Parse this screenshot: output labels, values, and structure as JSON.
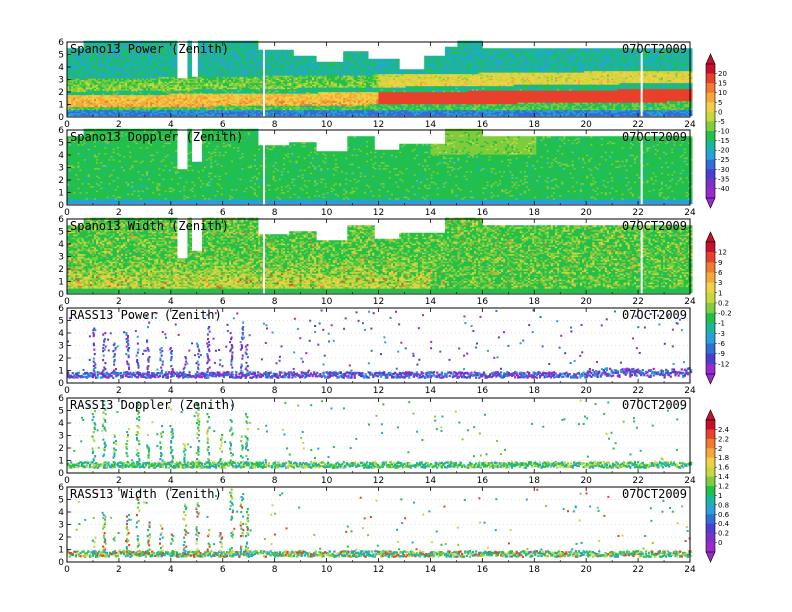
{
  "chart_data": [
    {
      "type": "heatmap",
      "title": "Spano13 Power (Zenith)",
      "date": "07OCT2009",
      "xlim": [
        0,
        24
      ],
      "ylim": [
        0,
        6
      ],
      "x_ticks": [
        "0",
        "2",
        "4",
        "6",
        "8",
        "10",
        "12",
        "14",
        "16",
        "18",
        "20",
        "22",
        "24"
      ],
      "y_ticks": [
        "0",
        "1",
        "2",
        "3",
        "4",
        "5",
        "6"
      ],
      "colorscale_group": 1,
      "gaps": [
        [
          4.2,
          4.6,
          3.0
        ],
        [
          4.8,
          5.0,
          3.2
        ],
        [
          7.3,
          8.7,
          5.3
        ],
        [
          8.7,
          9.6,
          4.8
        ],
        [
          9.6,
          10.6,
          4.4
        ],
        [
          10.6,
          11.6,
          5.2
        ],
        [
          11.6,
          12.8,
          4.6
        ],
        [
          12.8,
          13.7,
          3.8
        ],
        [
          13.7,
          14.5,
          4.9
        ],
        [
          14.5,
          15.0,
          5.6
        ],
        [
          16.0,
          24.0,
          5.5
        ]
      ],
      "bands": [
        [
          1.2,
          1.7,
          2.7
        ],
        [
          2.5,
          3.2,
          1.2
        ]
      ]
    },
    {
      "type": "heatmap",
      "title": "Spano13 Doppler (Zenith)",
      "date": "07OCT2009",
      "xlim": [
        0,
        24
      ],
      "ylim": [
        0,
        6
      ],
      "x_ticks": [
        "0",
        "2",
        "4",
        "6",
        "8",
        "10",
        "12",
        "14",
        "16",
        "18",
        "20",
        "22",
        "24"
      ],
      "y_ticks": [
        "0",
        "1",
        "2",
        "3",
        "4",
        "5",
        "6"
      ],
      "colorscale_group": 1,
      "gaps": [
        [
          4.2,
          4.6,
          2.8
        ],
        [
          4.8,
          5.2,
          3.4
        ],
        [
          7.3,
          8.5,
          4.7
        ],
        [
          8.5,
          9.6,
          5.0
        ],
        [
          9.6,
          10.8,
          4.2
        ],
        [
          10.8,
          11.8,
          5.5
        ],
        [
          11.8,
          12.8,
          4.4
        ],
        [
          12.8,
          14.5,
          4.9
        ],
        [
          16.0,
          24.0,
          5.5
        ]
      ],
      "bands": []
    },
    {
      "type": "heatmap",
      "title": "Spano13 Width (Zenith)",
      "date": "07OCT2009",
      "xlim": [
        0,
        24
      ],
      "ylim": [
        0,
        6
      ],
      "x_ticks": [
        "0",
        "2",
        "4",
        "6",
        "8",
        "10",
        "12",
        "14",
        "16",
        "18",
        "20",
        "22",
        "24"
      ],
      "y_ticks": [
        "0",
        "1",
        "2",
        "3",
        "4",
        "5",
        "6"
      ],
      "colorscale_group": 2,
      "gaps": [
        [
          4.2,
          4.6,
          2.8
        ],
        [
          4.8,
          5.2,
          3.4
        ],
        [
          7.3,
          8.5,
          4.7
        ],
        [
          8.5,
          9.6,
          5.0
        ],
        [
          9.6,
          10.8,
          4.2
        ],
        [
          10.8,
          11.8,
          5.5
        ],
        [
          11.8,
          12.8,
          4.4
        ],
        [
          12.8,
          14.5,
          4.9
        ],
        [
          16.0,
          24.0,
          5.5
        ]
      ],
      "bands": []
    },
    {
      "type": "scatter",
      "title": "RASS13 Power (Zenith)",
      "date": "07OCT2009",
      "xlim": [
        0,
        24
      ],
      "ylim": [
        0,
        6
      ],
      "x_ticks": [
        "0",
        "2",
        "4",
        "6",
        "8",
        "10",
        "12",
        "14",
        "16",
        "18",
        "20",
        "22",
        "24"
      ],
      "y_ticks": [
        "0",
        "1",
        "2",
        "3",
        "4",
        "5",
        "6"
      ],
      "colorscale_group": 2,
      "columns": [
        1.0,
        1.4,
        1.8,
        2.3,
        2.7,
        3.1,
        3.6,
        4.0,
        4.5,
        5.0,
        5.4,
        5.9,
        6.3,
        6.7,
        6.9
      ]
    },
    {
      "type": "scatter",
      "title": "RASS13 Doppler (Zenith)",
      "date": "07OCT2009",
      "xlim": [
        0,
        24
      ],
      "ylim": [
        0,
        6
      ],
      "x_ticks": [
        "0",
        "2",
        "4",
        "6",
        "8",
        "10",
        "12",
        "14",
        "16",
        "18",
        "20",
        "22",
        "24"
      ],
      "y_ticks": [
        "0",
        "1",
        "2",
        "3",
        "4",
        "5",
        "6"
      ],
      "colorscale_group": 3,
      "columns": [
        1.0,
        1.4,
        1.8,
        2.3,
        2.7,
        3.1,
        3.6,
        4.0,
        4.5,
        5.0,
        5.4,
        5.9,
        6.3,
        6.7,
        6.9
      ]
    },
    {
      "type": "scatter",
      "title": "RASS13 Width (Zenith)",
      "date": "07OCT2009",
      "xlim": [
        0,
        24
      ],
      "ylim": [
        0,
        6
      ],
      "x_ticks": [
        "0",
        "2",
        "4",
        "6",
        "8",
        "10",
        "12",
        "14",
        "16",
        "18",
        "20",
        "22",
        "24"
      ],
      "y_ticks": [
        "0",
        "1",
        "2",
        "3",
        "4",
        "5",
        "6"
      ],
      "colorscale_group": 3,
      "columns": [
        1.0,
        1.4,
        1.8,
        2.3,
        2.7,
        3.1,
        3.6,
        4.0,
        4.5,
        5.0,
        5.4,
        5.9,
        6.3,
        6.7,
        6.9
      ]
    }
  ],
  "colorbars": [
    {
      "labels": [
        "20",
        "15",
        "10",
        "5",
        "0",
        "-5",
        "-10",
        "-15",
        "-20",
        "-25",
        "-30",
        "-35",
        "-40"
      ],
      "colors": [
        "#c8102e",
        "#e8402a",
        "#f07a30",
        "#f5a83a",
        "#f2d046",
        "#c8d83c",
        "#7fcc3c",
        "#22c04a",
        "#18b8a0",
        "#2aa0d8",
        "#2f6fd8",
        "#4a3fd0",
        "#7a32c8",
        "#9a2ad0"
      ]
    },
    {
      "labels": [
        "12",
        "9",
        "6",
        "3",
        "1",
        "0.2",
        "-0.2",
        "-1",
        "-3",
        "-6",
        "-9",
        "-12"
      ],
      "colors": [
        "#c8102e",
        "#e8402a",
        "#f07a30",
        "#f5a83a",
        "#f2d046",
        "#c8d83c",
        "#7fcc3c",
        "#22c04a",
        "#18b8a0",
        "#2aa0d8",
        "#2f6fd8",
        "#4a3fd0",
        "#9a2ad0"
      ]
    },
    {
      "labels": [
        "2.4",
        "2.2",
        "2",
        "1.8",
        "1.6",
        "1.4",
        "1.2",
        "1",
        "0.8",
        "0.6",
        "0.4",
        "0.2",
        "0"
      ],
      "colors": [
        "#c8102e",
        "#e8402a",
        "#f07a30",
        "#f5a83a",
        "#f2d046",
        "#c8d83c",
        "#7fcc3c",
        "#22c04a",
        "#18b8a0",
        "#2aa0d8",
        "#2f6fd8",
        "#4a3fd0",
        "#7a32c8",
        "#9a2ad0"
      ]
    }
  ]
}
